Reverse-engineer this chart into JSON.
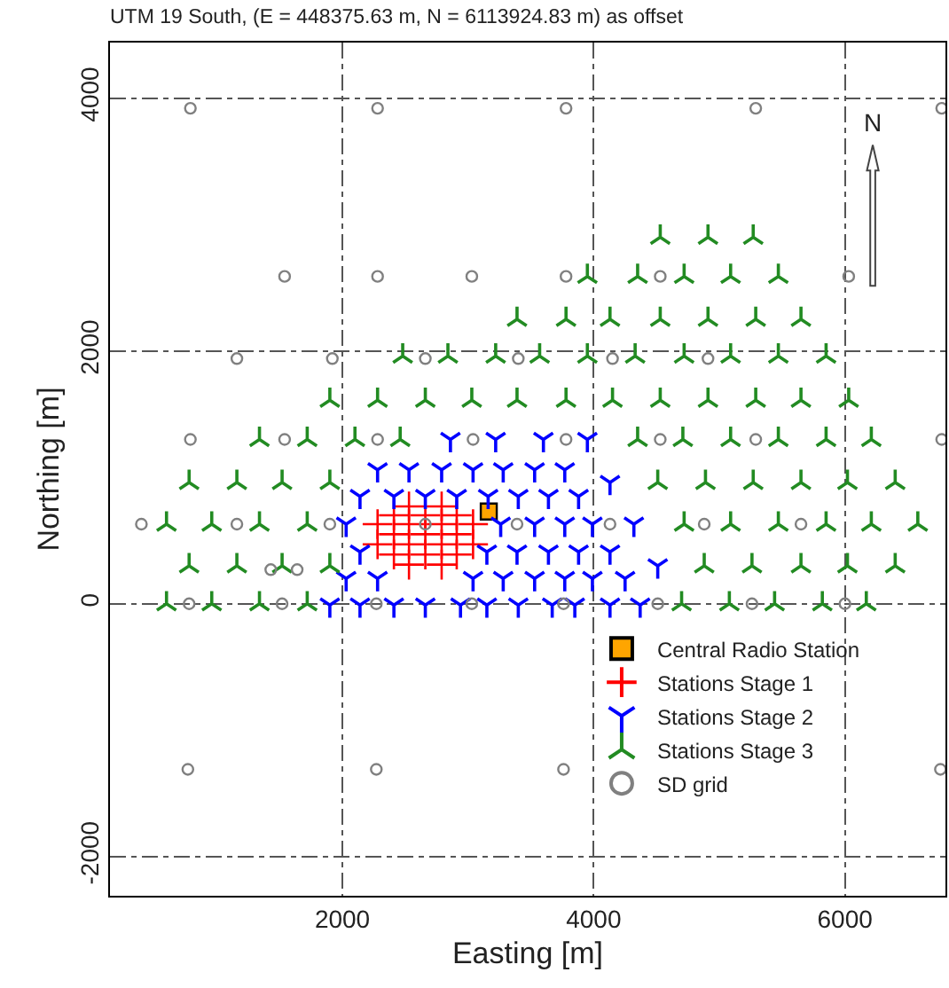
{
  "chart_data": {
    "type": "scatter",
    "title": "UTM 19 South, (E = 448375.63 m, N = 6113924.83 m) as offset",
    "xlabel": "Easting [m]",
    "ylabel": "Northing [m]",
    "xlim": [
      150,
      6800
    ],
    "ylim": [
      -2310,
      4440
    ],
    "xticks": [
      2000,
      4000,
      6000
    ],
    "yticks": [
      -2000,
      0,
      2000,
      4000
    ],
    "grid": true,
    "legend": "bottom right",
    "annotations": [
      "N"
    ],
    "series": [
      {
        "name": "Central Radio Station",
        "color": "#ffa500",
        "marker": "square",
        "x": [
          3165
        ],
        "values": [
          730
        ]
      },
      {
        "name": "Stations Stage 1",
        "color": "#ff0000",
        "marker": "cross",
        "x": [
          2530,
          2790,
          2410,
          2660,
          2910,
          2280,
          2530,
          2790,
          3040,
          2410,
          2660,
          2910,
          2280,
          2530,
          2790,
          3040,
          2410,
          2660,
          2910,
          2530,
          2790
        ],
        "values": [
          770,
          770,
          700,
          700,
          700,
          630,
          630,
          630,
          630,
          550,
          550,
          550,
          470,
          470,
          470,
          470,
          390,
          390,
          390,
          310,
          310
        ]
      },
      {
        "name": "Stations Stage 2",
        "color": "#0000ff",
        "marker": "cross",
        "x": [
          2860,
          3220,
          3600,
          3950,
          2280,
          2530,
          2790,
          3040,
          3280,
          3530,
          3770,
          4130,
          2140,
          2410,
          2660,
          2910,
          3160,
          3400,
          3640,
          3880,
          2030,
          3260,
          3530,
          3770,
          3990,
          4320,
          2140,
          3150,
          3390,
          3640,
          3880,
          4130,
          4510,
          2030,
          2280,
          3040,
          3280,
          3530,
          3770,
          3990,
          4250,
          1900,
          2140,
          2410,
          2660,
          2940,
          3150,
          3400,
          3670,
          3850,
          4130,
          4370
        ],
        "values": [
          1300,
          1300,
          1300,
          1300,
          1060,
          1060,
          1060,
          1060,
          1060,
          1060,
          1060,
          960,
          850,
          850,
          850,
          850,
          850,
          850,
          850,
          850,
          630,
          630,
          630,
          630,
          630,
          630,
          410,
          410,
          410,
          410,
          410,
          410,
          300,
          200,
          200,
          200,
          200,
          200,
          200,
          200,
          200,
          -10,
          -10,
          -10,
          -10,
          -10,
          -10,
          -10,
          -10,
          -10,
          -10,
          -10
        ]
      },
      {
        "name": "Stations Stage 3",
        "color": "#228b22",
        "marker": "cross",
        "x": [
          4530,
          4910,
          5270,
          3950,
          4350,
          4720,
          5090,
          5470,
          3390,
          3780,
          4130,
          4530,
          4910,
          5290,
          5650,
          2480,
          2840,
          3220,
          3570,
          3950,
          4330,
          4720,
          5090,
          5470,
          5850,
          1900,
          2280,
          2660,
          3030,
          3390,
          3780,
          4150,
          4530,
          4910,
          5290,
          5650,
          6030,
          1340,
          1720,
          2100,
          2460,
          4350,
          4710,
          5090,
          5470,
          5850,
          6210,
          780,
          1160,
          1520,
          1900,
          4510,
          4890,
          5270,
          5650,
          6020,
          6400,
          600,
          960,
          1340,
          1720,
          4720,
          5090,
          5470,
          5850,
          6210,
          6580,
          780,
          1160,
          1520,
          1900,
          4880,
          5260,
          5650,
          6020,
          6400,
          600,
          960,
          1340,
          1720,
          4700,
          5080,
          5440,
          5820,
          6170
        ],
        "values": [
          2900,
          2900,
          2900,
          2590,
          2590,
          2590,
          2590,
          2590,
          2250,
          2250,
          2250,
          2250,
          2250,
          2250,
          2250,
          1960,
          1960,
          1960,
          1960,
          1960,
          1960,
          1960,
          1960,
          1960,
          1960,
          1610,
          1610,
          1610,
          1610,
          1610,
          1610,
          1610,
          1610,
          1610,
          1610,
          1610,
          1610,
          1300,
          1300,
          1300,
          1300,
          1300,
          1300,
          1300,
          1300,
          1300,
          1300,
          960,
          960,
          960,
          960,
          960,
          960,
          960,
          960,
          960,
          960,
          630,
          630,
          630,
          630,
          630,
          630,
          630,
          630,
          630,
          630,
          300,
          300,
          300,
          300,
          300,
          300,
          300,
          300,
          300,
          0,
          0,
          0,
          0,
          0,
          0,
          0,
          0,
          0
        ]
      },
      {
        "name": "SD grid",
        "color": "#808080",
        "marker": "circle",
        "x": [
          790,
          2280,
          3780,
          5290,
          6770,
          1540,
          2280,
          3030,
          3780,
          4530,
          6030,
          1160,
          1920,
          2660,
          3400,
          4150,
          4910,
          790,
          1540,
          2280,
          3040,
          3780,
          4530,
          5290,
          6770,
          400,
          1160,
          1900,
          2660,
          3390,
          4130,
          4880,
          5650,
          1430,
          1640,
          780,
          1520,
          2270,
          3030,
          3760,
          4510,
          5260,
          6000,
          770,
          2270,
          3760,
          6760
        ],
        "values": [
          3920,
          3920,
          3920,
          3920,
          3920,
          2590,
          2590,
          2590,
          2590,
          2590,
          2590,
          1940,
          1940,
          1940,
          1940,
          1940,
          1940,
          1300,
          1300,
          1300,
          1300,
          1300,
          1300,
          1300,
          1300,
          630,
          630,
          630,
          630,
          630,
          630,
          630,
          630,
          270,
          270,
          0,
          0,
          0,
          0,
          0,
          0,
          0,
          0,
          -1310,
          -1310,
          -1310,
          -1310
        ]
      }
    ]
  }
}
